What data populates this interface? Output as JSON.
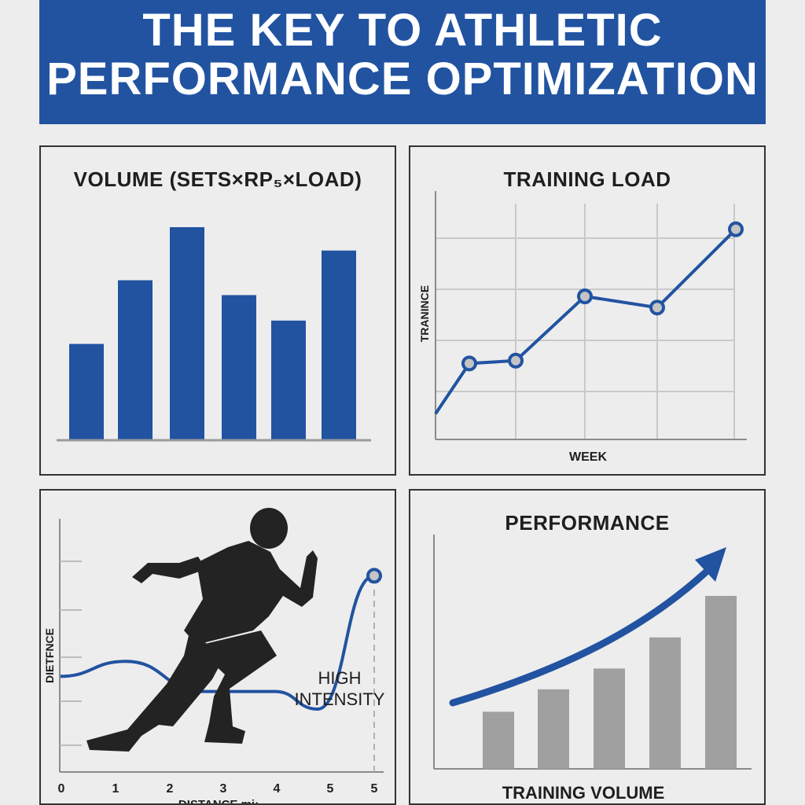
{
  "header": {
    "line1": "THE KEY TO ATHLETIC",
    "line2": "PERFORMANCE OPTIMIZATION"
  },
  "colors": {
    "accent": "#2153a1",
    "bars_grey": "#a0a0a0",
    "banner_text": "#ffffff",
    "background": "#ededed"
  },
  "icons": [
    "runner-silhouette-icon",
    "trend-arrow-icon"
  ],
  "chart_data": [
    {
      "id": "volume",
      "type": "bar",
      "title": "VOLUME  (SETS×RP₅×LOAD)",
      "categories": [
        "",
        "",
        "",
        "",
        "",
        ""
      ],
      "values": [
        45,
        75,
        100,
        68,
        56,
        89
      ],
      "ylim": [
        0,
        100
      ],
      "grid": false,
      "color": "#2153a1"
    },
    {
      "id": "training-load",
      "type": "line",
      "title": "TRAINING LOAD",
      "xlabel": "WEEK",
      "ylabel": "TRANINCE",
      "x": [
        0,
        1,
        2,
        3,
        4,
        5
      ],
      "y": [
        12,
        30,
        31,
        54,
        50,
        78
      ],
      "marked_points": [
        1,
        2,
        3,
        4,
        5
      ],
      "xlim": [
        0,
        5
      ],
      "ylim": [
        0,
        90
      ],
      "grid": true
    },
    {
      "id": "distance",
      "type": "line",
      "xlabel": "DISTANCE mi:",
      "ylabel": "DIETFNCE",
      "x_tick_labels": [
        "0",
        "1",
        "2",
        "3",
        "4",
        "5",
        "5"
      ],
      "annotation": "HIGH\nINTENSITY",
      "x": [
        0,
        1,
        2,
        3,
        4,
        5
      ],
      "y": [
        38,
        44,
        32,
        32,
        25,
        78
      ],
      "marked_points": [
        5
      ],
      "ylim": [
        0,
        100
      ],
      "grid": false
    },
    {
      "id": "performance",
      "type": "bar",
      "title": "PERFORMANCE",
      "xlabel": "TRAINING VOLUME",
      "categories": [
        "",
        "",
        "",
        "",
        ""
      ],
      "values": [
        33,
        46,
        58,
        76,
        100
      ],
      "ylim": [
        0,
        100
      ],
      "grid": false,
      "color": "#a0a0a0",
      "trend_arrow": true
    }
  ]
}
